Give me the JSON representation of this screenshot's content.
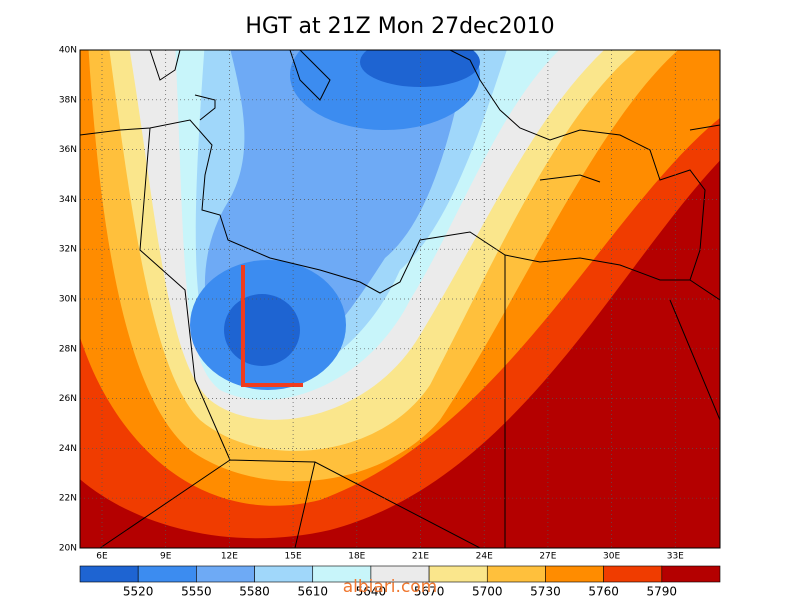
{
  "title": "HGT at 21Z Mon 27dec2010",
  "map": {
    "lat_labels": [
      "20N",
      "22N",
      "24N",
      "26N",
      "28N",
      "30N",
      "32N",
      "34N",
      "36N",
      "38N",
      "40N"
    ],
    "lon_labels": [
      "6E",
      "9E",
      "12E",
      "15E",
      "18E",
      "21E",
      "24E",
      "27E",
      "30E",
      "33E"
    ]
  },
  "colorbar": {
    "labels": [
      "5520",
      "5550",
      "5580",
      "5610",
      "5640",
      "5670",
      "5700",
      "5730",
      "5760",
      "5790"
    ],
    "colors": [
      "#1e64d2",
      "#3c8cf0",
      "#6eaaf5",
      "#a0d7fa",
      "#c8f5fa",
      "#ebebeb",
      "#fae68c",
      "#ffc03c",
      "#ff8c00",
      "#f03c00",
      "#b40000"
    ]
  },
  "watermark": "albiari.com"
}
